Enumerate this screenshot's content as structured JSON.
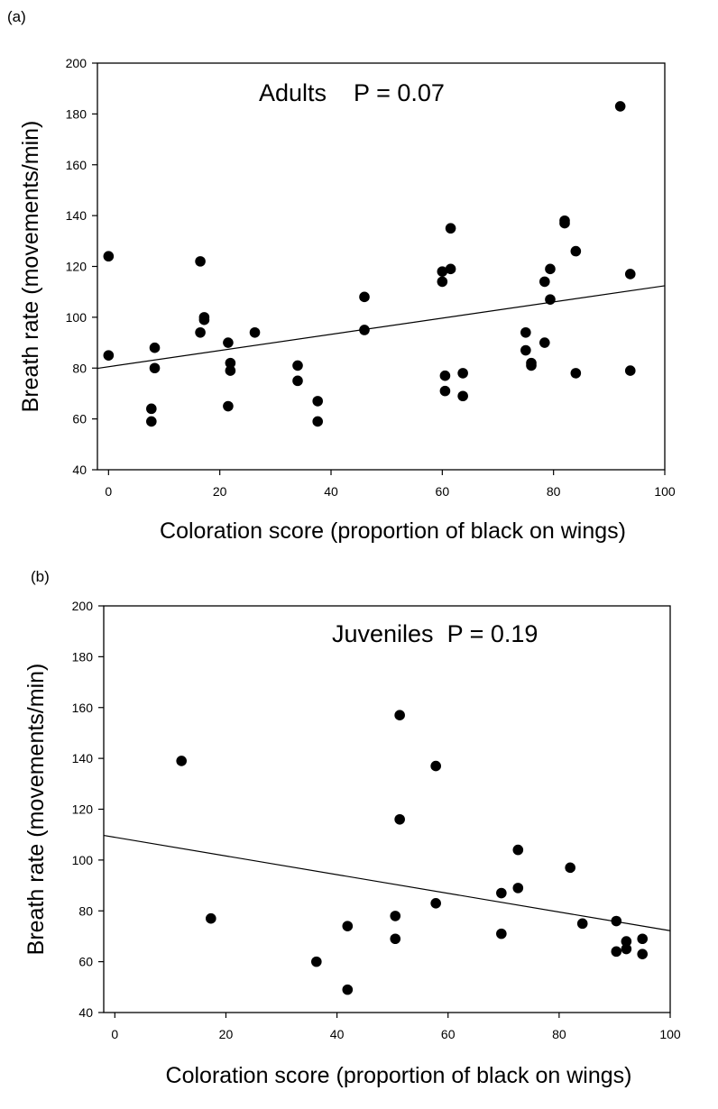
{
  "chart_data": [
    {
      "type": "scatter",
      "panel_label": "(a)",
      "annotation": "Adults    P = 0.07",
      "xlabel": "Coloration score (proportion of black on wings)",
      "ylabel": "Breath rate (movements/min)",
      "xlim": [
        -2,
        100
      ],
      "ylim": [
        40,
        200
      ],
      "xticks": [
        0,
        20,
        40,
        60,
        80,
        100
      ],
      "yticks": [
        40,
        60,
        80,
        100,
        120,
        140,
        160,
        180,
        200
      ],
      "grid": false,
      "points": [
        [
          0,
          124
        ],
        [
          0,
          85
        ],
        [
          7.7,
          64
        ],
        [
          7.7,
          59
        ],
        [
          8.3,
          88
        ],
        [
          8.3,
          80
        ],
        [
          16.5,
          122
        ],
        [
          16.5,
          94
        ],
        [
          17.2,
          100
        ],
        [
          17.2,
          99
        ],
        [
          21.5,
          90
        ],
        [
          21.5,
          65
        ],
        [
          21.9,
          82
        ],
        [
          21.9,
          79
        ],
        [
          26.3,
          94
        ],
        [
          34,
          81
        ],
        [
          34,
          75
        ],
        [
          37.6,
          67
        ],
        [
          37.6,
          59
        ],
        [
          46,
          108
        ],
        [
          46,
          95
        ],
        [
          60,
          118
        ],
        [
          60,
          114
        ],
        [
          60.5,
          77
        ],
        [
          60.5,
          71
        ],
        [
          61.5,
          135
        ],
        [
          61.5,
          119
        ],
        [
          63.7,
          78
        ],
        [
          63.7,
          69
        ],
        [
          75,
          94
        ],
        [
          75,
          87
        ],
        [
          76,
          82
        ],
        [
          76,
          81
        ],
        [
          78.4,
          114
        ],
        [
          78.4,
          90
        ],
        [
          79.4,
          119
        ],
        [
          79.4,
          107
        ],
        [
          82,
          138
        ],
        [
          82,
          137
        ],
        [
          84,
          126
        ],
        [
          84,
          78
        ],
        [
          92,
          183
        ],
        [
          93.8,
          117
        ],
        [
          93.8,
          79
        ]
      ],
      "trendline": [
        [
          -2,
          79.9
        ],
        [
          100,
          112.4
        ]
      ]
    },
    {
      "type": "scatter",
      "panel_label": "(b)",
      "annotation": "Juveniles  P = 0.19",
      "xlabel": "Coloration score (proportion of black on wings)",
      "ylabel": "Breath rate (movements/min)",
      "xlim": [
        -2,
        100
      ],
      "ylim": [
        40,
        200
      ],
      "xticks": [
        0,
        20,
        40,
        60,
        80,
        100
      ],
      "yticks": [
        40,
        60,
        80,
        100,
        120,
        140,
        160,
        180,
        200
      ],
      "grid": false,
      "points": [
        [
          12,
          139
        ],
        [
          17.3,
          77
        ],
        [
          36.3,
          60
        ],
        [
          41.9,
          74
        ],
        [
          41.9,
          49
        ],
        [
          50.5,
          78
        ],
        [
          50.5,
          69
        ],
        [
          51.3,
          157
        ],
        [
          51.3,
          116
        ],
        [
          57.8,
          137
        ],
        [
          57.8,
          83
        ],
        [
          69.6,
          87
        ],
        [
          69.6,
          71
        ],
        [
          72.6,
          104
        ],
        [
          72.6,
          89
        ],
        [
          82,
          97
        ],
        [
          84.2,
          75
        ],
        [
          90.3,
          76
        ],
        [
          90.3,
          64
        ],
        [
          92.1,
          68
        ],
        [
          92.1,
          65
        ],
        [
          95,
          69
        ],
        [
          95,
          63
        ]
      ],
      "trendline": [
        [
          -2,
          109.7
        ],
        [
          100,
          72.2
        ]
      ]
    }
  ]
}
